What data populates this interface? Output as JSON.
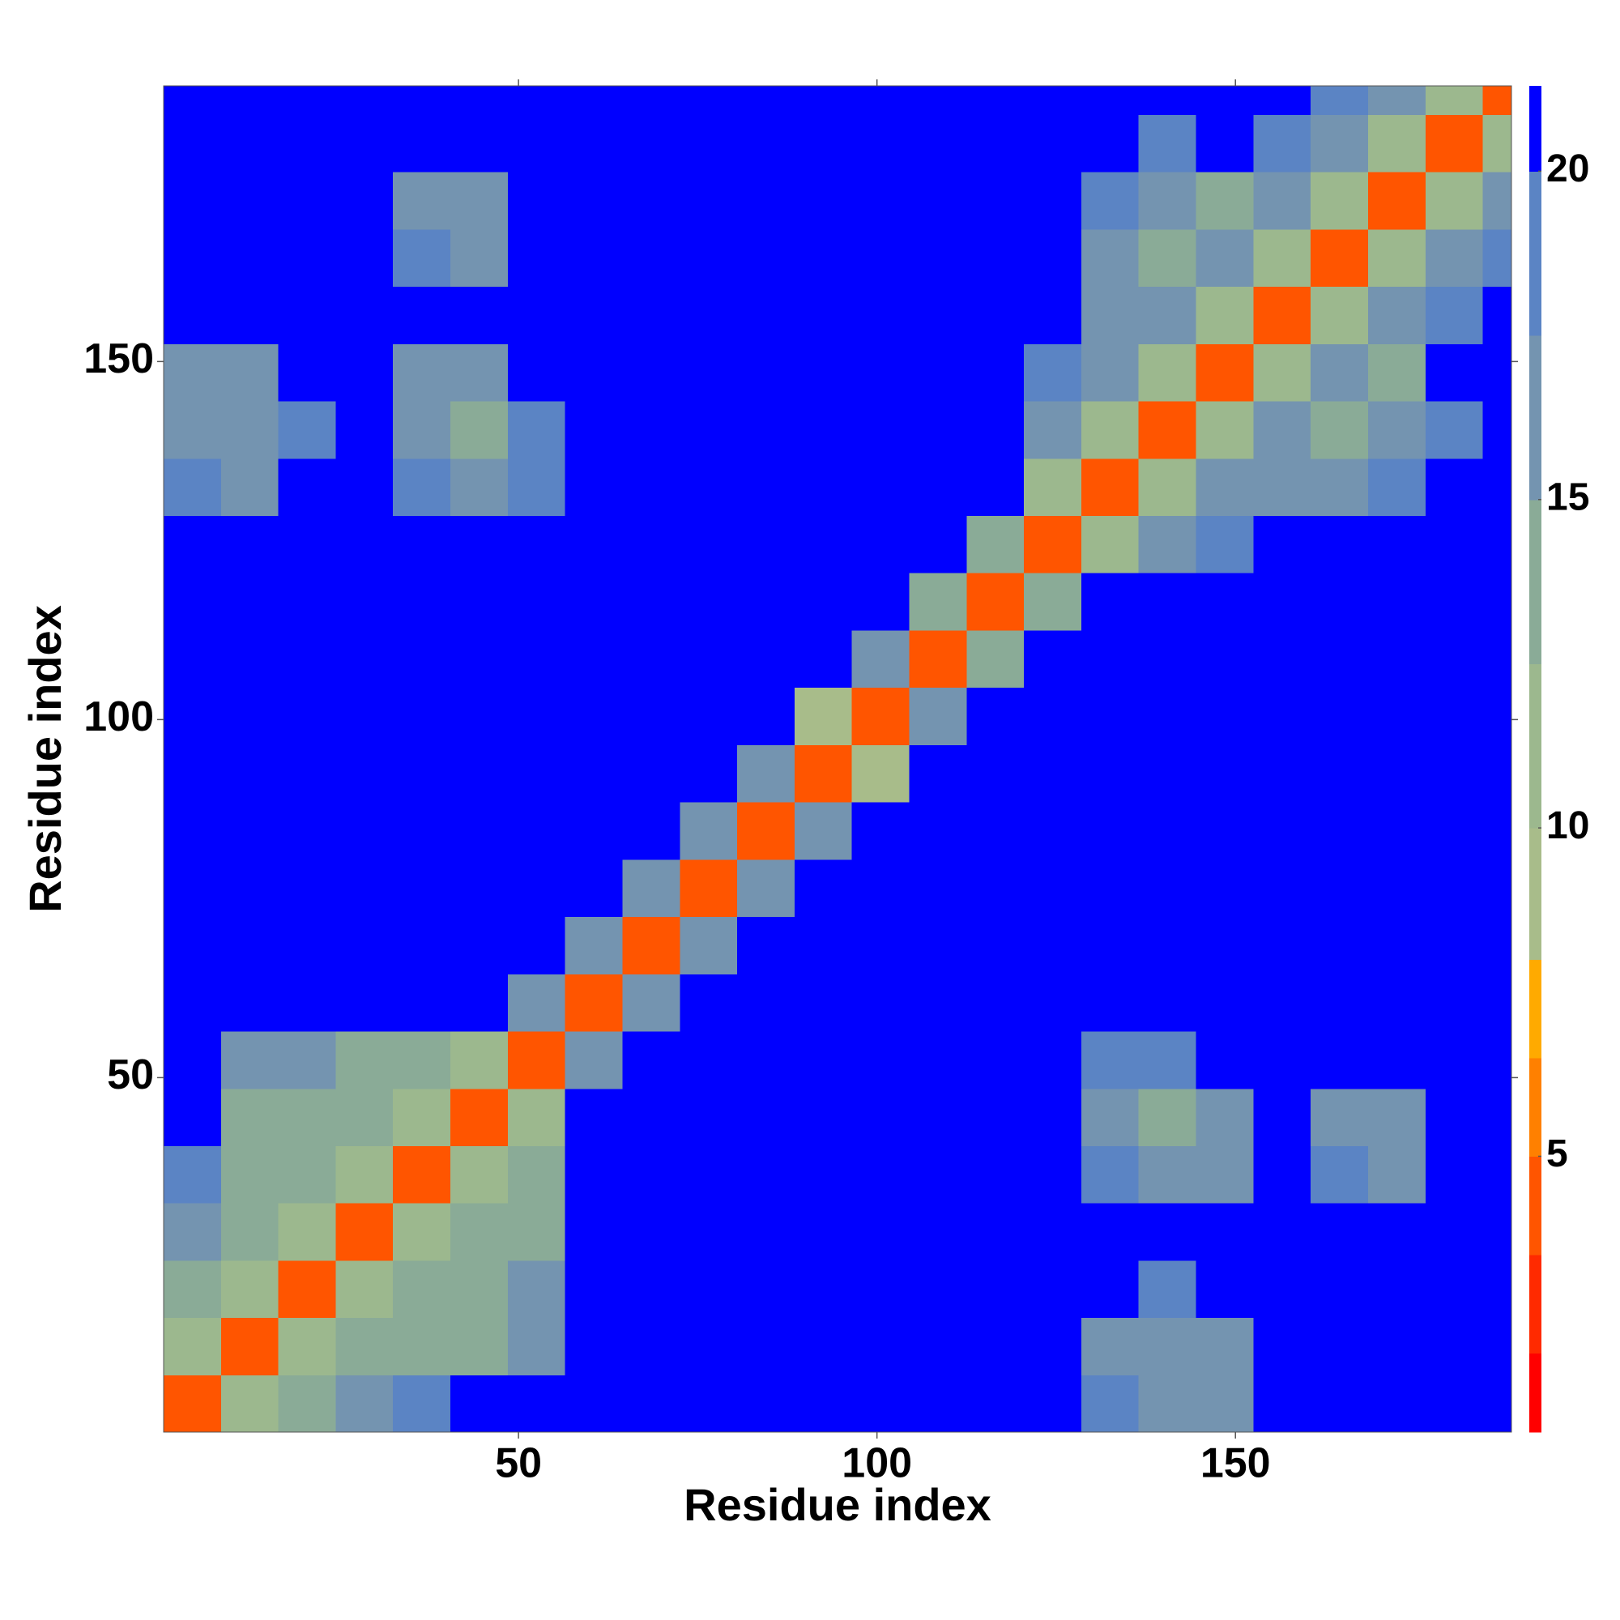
{
  "chart_data": {
    "type": "heatmap",
    "xlabel": "Residue index",
    "ylabel": "Residue index",
    "xlim": [
      0.5,
      188.5
    ],
    "ylim": [
      0.5,
      188.5
    ],
    "xticks": [
      50,
      100,
      150
    ],
    "yticks": [
      50,
      100,
      150
    ],
    "x_edges": [
      0.5,
      8.5,
      16.5,
      24.5,
      32.5,
      40.5,
      48.5,
      56.5,
      64.5,
      72.5,
      80.5,
      88.5,
      96.5,
      104.5,
      112.5,
      120.5,
      128.5,
      136.5,
      144.5,
      152.5,
      160.5,
      168.5,
      176.5,
      184.5,
      188.5
    ],
    "y_edges": [
      0.5,
      8.5,
      16.5,
      24.5,
      32.5,
      40.5,
      48.5,
      56.5,
      64.5,
      72.5,
      80.5,
      88.5,
      96.5,
      104.5,
      112.5,
      120.5,
      128.5,
      136.5,
      144.5,
      152.5,
      160.5,
      168.5,
      176.5,
      184.5,
      188.5
    ],
    "clim": [
      0.8,
      21.3
    ],
    "cticks": [
      5,
      10,
      15,
      20
    ],
    "colorscale": [
      [
        2,
        "#ff0000"
      ],
      [
        3.5,
        "#ff2a00"
      ],
      [
        5,
        "#ff5500"
      ],
      [
        6.5,
        "#ff8000"
      ],
      [
        8,
        "#ffaa00"
      ],
      [
        10,
        "#a8bc8a"
      ],
      [
        12.5,
        "#9cb88e"
      ],
      [
        15,
        "#8aab97"
      ],
      [
        17.5,
        "#7494b0"
      ],
      [
        20,
        "#5b84c4"
      ],
      [
        21.3,
        "#0000ff"
      ]
    ],
    "values": [
      [
        5,
        11,
        15,
        16,
        18,
        21,
        21,
        21,
        21,
        21,
        21,
        21,
        21,
        21,
        21,
        21,
        18,
        17,
        17,
        21,
        21,
        21,
        21,
        21
      ],
      [
        11,
        5,
        11,
        15,
        14,
        15,
        17,
        21,
        21,
        21,
        21,
        21,
        21,
        21,
        21,
        21,
        17,
        16,
        17,
        21,
        21,
        21,
        21,
        21
      ],
      [
        15,
        11,
        5,
        11,
        13,
        14,
        16,
        21,
        21,
        21,
        21,
        21,
        21,
        21,
        21,
        21,
        21,
        19,
        21,
        21,
        21,
        21,
        21,
        21
      ],
      [
        16,
        15,
        11,
        5,
        11,
        15,
        15,
        21,
        21,
        21,
        21,
        21,
        21,
        21,
        21,
        21,
        21,
        21,
        21,
        21,
        21,
        21,
        21,
        21
      ],
      [
        18,
        14,
        13,
        11,
        5,
        11,
        15,
        21,
        21,
        21,
        21,
        21,
        21,
        21,
        21,
        21,
        19,
        16,
        17,
        21,
        18,
        16,
        21,
        21
      ],
      [
        21,
        15,
        14,
        15,
        11,
        5,
        11,
        21,
        21,
        21,
        21,
        21,
        21,
        21,
        21,
        21,
        17,
        15,
        17,
        21,
        17,
        17,
        21,
        21
      ],
      [
        21,
        17,
        16,
        15,
        15,
        11,
        5,
        16,
        21,
        21,
        21,
        21,
        21,
        21,
        21,
        21,
        18,
        19,
        21,
        21,
        21,
        21,
        21,
        21
      ],
      [
        21,
        21,
        21,
        21,
        21,
        21,
        16,
        5,
        16,
        21,
        21,
        21,
        21,
        21,
        21,
        21,
        21,
        21,
        21,
        21,
        21,
        21,
        21,
        21
      ],
      [
        21,
        21,
        21,
        21,
        21,
        21,
        21,
        16,
        5,
        16,
        21,
        21,
        21,
        21,
        21,
        21,
        21,
        21,
        21,
        21,
        21,
        21,
        21,
        21
      ],
      [
        21,
        21,
        21,
        21,
        21,
        21,
        21,
        21,
        16,
        5,
        16,
        21,
        21,
        21,
        21,
        21,
        21,
        21,
        21,
        21,
        21,
        21,
        21,
        21
      ],
      [
        21,
        21,
        21,
        21,
        21,
        21,
        21,
        21,
        21,
        16,
        5,
        16,
        21,
        21,
        21,
        21,
        21,
        21,
        21,
        21,
        21,
        21,
        21,
        21
      ],
      [
        21,
        21,
        21,
        21,
        21,
        21,
        21,
        21,
        21,
        21,
        16,
        5,
        10,
        21,
        21,
        21,
        21,
        21,
        21,
        21,
        21,
        21,
        21,
        21
      ],
      [
        21,
        21,
        21,
        21,
        21,
        21,
        21,
        21,
        21,
        21,
        21,
        10,
        5,
        16,
        21,
        21,
        21,
        21,
        21,
        21,
        21,
        21,
        21,
        21
      ],
      [
        21,
        21,
        21,
        21,
        21,
        21,
        21,
        21,
        21,
        21,
        21,
        21,
        16,
        5,
        13,
        21,
        21,
        21,
        21,
        21,
        21,
        21,
        21,
        21
      ],
      [
        21,
        21,
        21,
        21,
        21,
        21,
        21,
        21,
        21,
        21,
        21,
        21,
        21,
        13,
        5,
        13,
        21,
        21,
        21,
        21,
        21,
        21,
        21,
        21
      ],
      [
        21,
        21,
        21,
        21,
        21,
        21,
        21,
        21,
        21,
        21,
        21,
        21,
        21,
        21,
        13,
        5,
        11,
        16,
        19,
        21,
        21,
        21,
        21,
        21
      ],
      [
        18,
        17,
        21,
        21,
        19,
        17,
        18,
        21,
        21,
        21,
        21,
        21,
        21,
        21,
        21,
        11,
        5,
        11,
        16,
        16,
        17,
        18,
        21,
        21
      ],
      [
        17,
        16,
        19,
        21,
        16,
        15,
        19,
        21,
        21,
        21,
        21,
        21,
        21,
        21,
        21,
        16,
        11,
        5,
        11,
        16,
        15,
        16,
        18,
        21
      ],
      [
        17,
        17,
        21,
        21,
        17,
        17,
        21,
        21,
        21,
        21,
        21,
        21,
        21,
        21,
        21,
        19,
        16,
        11,
        5,
        11,
        16,
        15,
        21,
        21
      ],
      [
        21,
        21,
        21,
        21,
        21,
        21,
        21,
        21,
        21,
        21,
        21,
        21,
        21,
        21,
        21,
        21,
        16,
        16,
        11,
        5,
        11,
        16,
        19,
        21
      ],
      [
        21,
        21,
        21,
        21,
        18,
        17,
        21,
        21,
        21,
        21,
        21,
        21,
        21,
        21,
        21,
        21,
        17,
        15,
        16,
        11,
        5,
        11,
        16,
        19
      ],
      [
        21,
        21,
        21,
        21,
        16,
        17,
        21,
        21,
        21,
        21,
        21,
        21,
        21,
        21,
        21,
        21,
        18,
        16,
        15,
        16,
        11,
        5,
        11,
        16
      ],
      [
        21,
        21,
        21,
        21,
        21,
        21,
        21,
        21,
        21,
        21,
        21,
        21,
        21,
        21,
        21,
        21,
        21,
        18,
        21,
        19,
        16,
        11,
        5,
        11
      ],
      [
        21,
        21,
        21,
        21,
        21,
        21,
        21,
        21,
        21,
        21,
        21,
        21,
        21,
        21,
        21,
        21,
        21,
        21,
        21,
        21,
        19,
        16,
        11,
        5
      ]
    ]
  }
}
